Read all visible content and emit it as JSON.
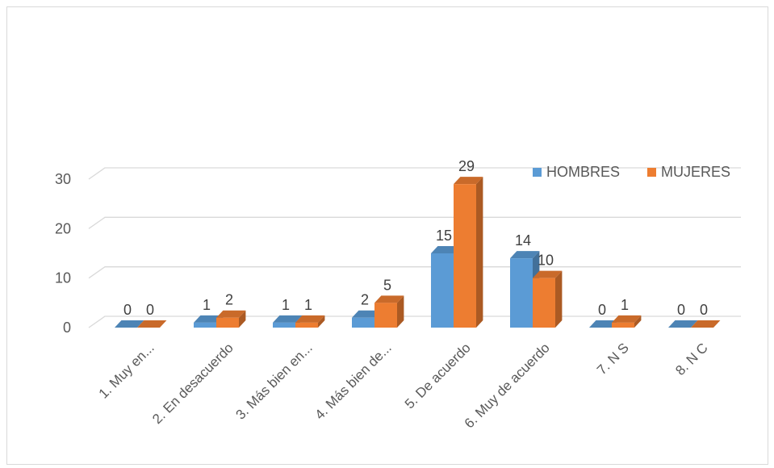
{
  "chart_data": {
    "type": "bar",
    "categories": [
      "1. Muy en...",
      "2. En desacuerdo",
      "3. Más bien en...",
      "4. Más bien de...",
      "5. De acuerdo",
      "6. Muy de acuerdo",
      "7. N S",
      "8. N C"
    ],
    "series": [
      {
        "name": "HOMBRES",
        "values": [
          0,
          1,
          1,
          2,
          15,
          14,
          0,
          0
        ],
        "color": "#5b9bd5"
      },
      {
        "name": "MUJERES",
        "values": [
          0,
          2,
          1,
          5,
          29,
          10,
          1,
          0
        ],
        "color": "#ed7d31"
      }
    ],
    "yticks": [
      "0",
      "10",
      "20",
      "30"
    ],
    "ylim": [
      0,
      30
    ],
    "grid": true,
    "legend": "top-right",
    "title": "",
    "xlabel": "",
    "ylabel": ""
  }
}
